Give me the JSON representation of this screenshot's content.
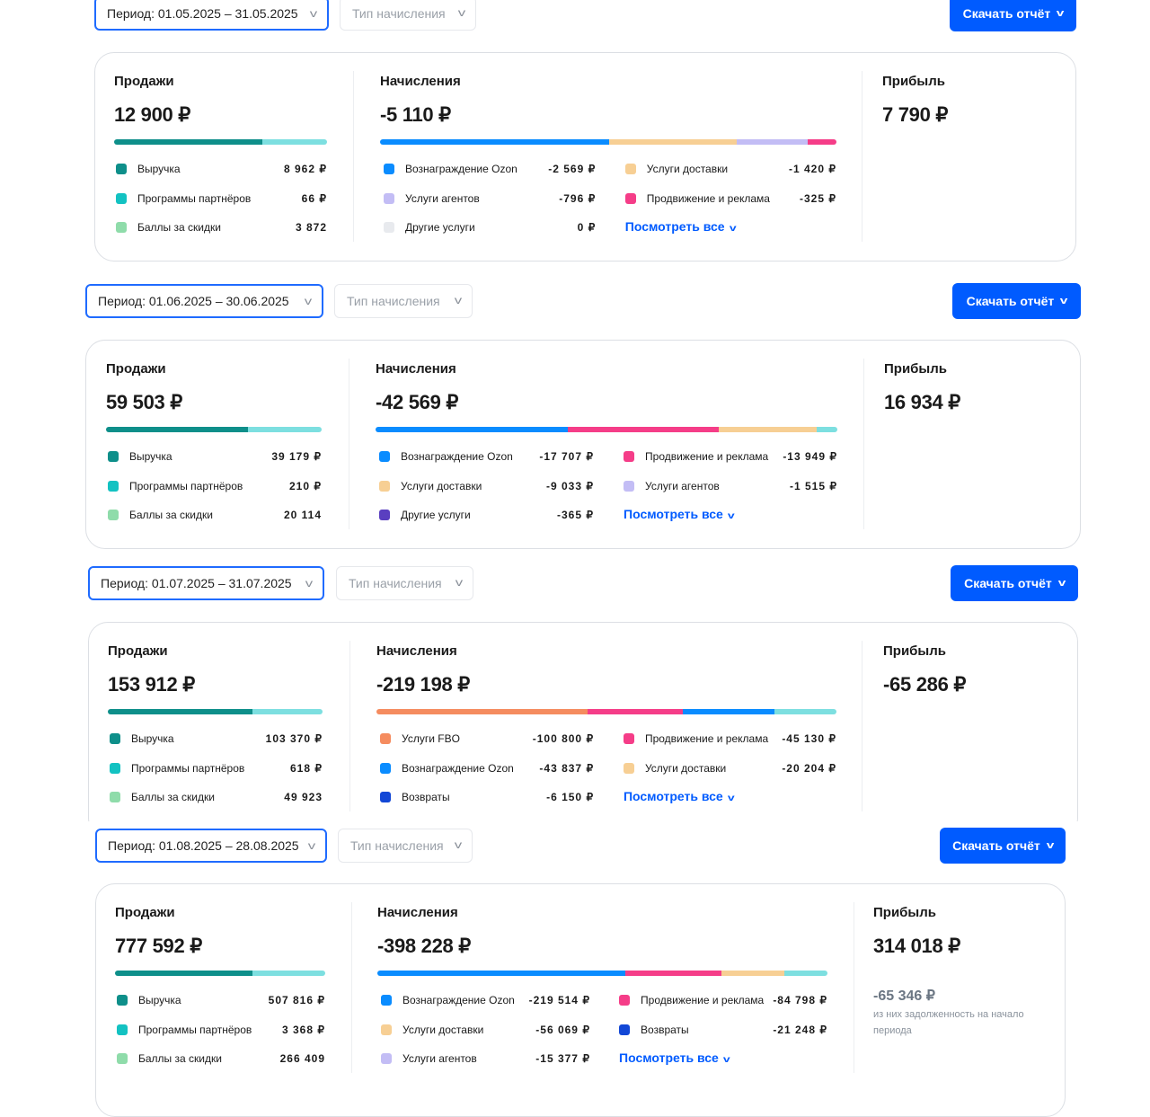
{
  "labels": {
    "sales": "Продажи",
    "charges": "Начисления",
    "profit": "Прибыль",
    "type_filter": "Тип начисления",
    "download": "Скачать отчёт",
    "see_all": "Посмотреть все"
  },
  "colors": {
    "accent": "#005bff",
    "revenue": "#0e8f8a",
    "rest": "#7ddfe0"
  },
  "sections": [
    {
      "period": "Период: 01.05.2025 – 31.05.2025",
      "sales_total": "12 900 ₽",
      "charges_total": "-5 110 ₽",
      "profit_total": "7 790 ₽",
      "sales_items": [
        {
          "label": "Выручка",
          "value": "8 962 ₽",
          "color": "#0e8f8a"
        },
        {
          "label": "Программы партнёров",
          "value": "66 ₽",
          "color": "#13c2c2"
        },
        {
          "label": "Баллы за скидки",
          "value": "3 872",
          "color": "#8fdcaa"
        }
      ],
      "sales_bar": [
        8962,
        3938
      ],
      "charges_items": [
        {
          "label": "Вознаграждение Ozon",
          "value": "-2 569 ₽",
          "color": "#0a8cff"
        },
        {
          "label": "Услуги доставки",
          "value": "-1 420 ₽",
          "color": "#f7cf94"
        },
        {
          "label": "Услуги агентов",
          "value": "-796 ₽",
          "color": "#c3bdf5"
        },
        {
          "label": "Продвижение и реклама",
          "value": "-325 ₽",
          "color": "#f53d88"
        },
        {
          "label": "Другие услуги",
          "value": "0 ₽",
          "color": "#e8eaee"
        }
      ],
      "charges_bar": [
        {
          "v": 2569,
          "c": "#0a8cff"
        },
        {
          "v": 1420,
          "c": "#f7cf94"
        },
        {
          "v": 796,
          "c": "#c3bdf5"
        },
        {
          "v": 325,
          "c": "#f53d88"
        }
      ]
    },
    {
      "period": "Период: 01.06.2025 – 30.06.2025",
      "sales_total": "59 503 ₽",
      "charges_total": "-42 569 ₽",
      "profit_total": "16 934 ₽",
      "sales_items": [
        {
          "label": "Выручка",
          "value": "39 179 ₽",
          "color": "#0e8f8a"
        },
        {
          "label": "Программы партнёров",
          "value": "210 ₽",
          "color": "#13c2c2"
        },
        {
          "label": "Баллы за скидки",
          "value": "20 114",
          "color": "#8fdcaa"
        }
      ],
      "sales_bar": [
        39179,
        20324
      ],
      "charges_items": [
        {
          "label": "Вознаграждение Ozon",
          "value": "-17 707 ₽",
          "color": "#0a8cff"
        },
        {
          "label": "Продвижение и реклама",
          "value": "-13 949 ₽",
          "color": "#f53d88"
        },
        {
          "label": "Услуги доставки",
          "value": "-9 033 ₽",
          "color": "#f7cf94"
        },
        {
          "label": "Услуги агентов",
          "value": "-1 515 ₽",
          "color": "#c3bdf5"
        },
        {
          "label": "Другие услуги",
          "value": "-365 ₽",
          "color": "#5a3fc0"
        }
      ],
      "charges_bar": [
        {
          "v": 17707,
          "c": "#0a8cff"
        },
        {
          "v": 13949,
          "c": "#f53d88"
        },
        {
          "v": 9033,
          "c": "#f7cf94"
        },
        {
          "v": 1880,
          "c": "#7ddfe0"
        }
      ]
    },
    {
      "period": "Период: 01.07.2025 – 31.07.2025",
      "sales_total": "153 912 ₽",
      "charges_total": "-219 198 ₽",
      "profit_total": "-65 286 ₽",
      "sales_items": [
        {
          "label": "Выручка",
          "value": "103 370 ₽",
          "color": "#0e8f8a"
        },
        {
          "label": "Программы партнёров",
          "value": "618 ₽",
          "color": "#13c2c2"
        },
        {
          "label": "Баллы за скидки",
          "value": "49 923",
          "color": "#8fdcaa"
        }
      ],
      "sales_bar": [
        103370,
        50542
      ],
      "charges_items": [
        {
          "label": "Услуги FBO",
          "value": "-100 800 ₽",
          "color": "#f58c5f"
        },
        {
          "label": "Продвижение и реклама",
          "value": "-45 130 ₽",
          "color": "#f53d88"
        },
        {
          "label": "Вознаграждение Ozon",
          "value": "-43 837 ₽",
          "color": "#0a8cff"
        },
        {
          "label": "Услуги доставки",
          "value": "-20 204 ₽",
          "color": "#f7cf94"
        },
        {
          "label": "Возвраты",
          "value": "-6 150 ₽",
          "color": "#1247d6"
        }
      ],
      "charges_bar": [
        {
          "v": 100800,
          "c": "#f58c5f"
        },
        {
          "v": 45130,
          "c": "#f53d88"
        },
        {
          "v": 43837,
          "c": "#0a8cff"
        },
        {
          "v": 29431,
          "c": "#7ddfe0"
        }
      ]
    },
    {
      "period": "Период: 01.08.2025 – 28.08.2025",
      "sales_total": "777 592 ₽",
      "charges_total": "-398 228 ₽",
      "profit_total": "314 018 ₽",
      "debt": "-65 346 ₽",
      "debt_note": "из них задолженность на начало периода",
      "sales_items": [
        {
          "label": "Выручка",
          "value": "507 816 ₽",
          "color": "#0e8f8a"
        },
        {
          "label": "Программы партнёров",
          "value": "3 368 ₽",
          "color": "#13c2c2"
        },
        {
          "label": "Баллы за скидки",
          "value": "266 409",
          "color": "#8fdcaa"
        }
      ],
      "sales_bar": [
        507816,
        269776
      ],
      "charges_items": [
        {
          "label": "Вознаграждение Ozon",
          "value": "-219 514 ₽",
          "color": "#0a8cff"
        },
        {
          "label": "Продвижение и реклама",
          "value": "-84 798 ₽",
          "color": "#f53d88"
        },
        {
          "label": "Услуги доставки",
          "value": "-56 069 ₽",
          "color": "#f7cf94"
        },
        {
          "label": "Возвраты",
          "value": "-21 248 ₽",
          "color": "#1247d6"
        },
        {
          "label": "Услуги агентов",
          "value": "-15 377 ₽",
          "color": "#c3bdf5"
        }
      ],
      "charges_bar": [
        {
          "v": 219514,
          "c": "#0a8cff"
        },
        {
          "v": 84798,
          "c": "#f53d88"
        },
        {
          "v": 56069,
          "c": "#f7cf94"
        },
        {
          "v": 37847,
          "c": "#7ddfe0"
        }
      ]
    }
  ]
}
